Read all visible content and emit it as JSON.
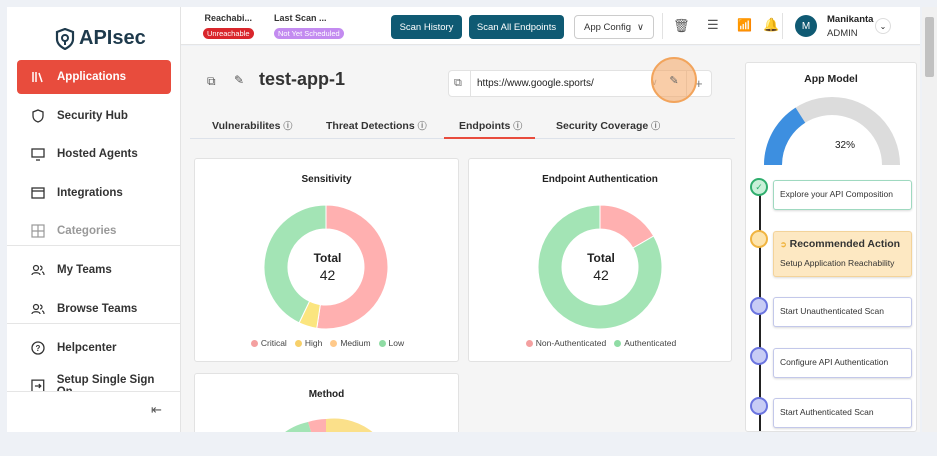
{
  "brand": {
    "name": "APIsec"
  },
  "sidebar": {
    "items": [
      {
        "label": "Applications",
        "icon": "books-icon",
        "active": true
      },
      {
        "label": "Security Hub",
        "icon": "shield-icon"
      },
      {
        "label": "Hosted Agents",
        "icon": "monitor-icon"
      },
      {
        "label": "Integrations",
        "icon": "window-icon"
      },
      {
        "label": "Categories",
        "icon": "grid-icon",
        "disabled": true
      },
      {
        "label": "My Teams",
        "icon": "users-icon"
      },
      {
        "label": "Browse Teams",
        "icon": "users-icon"
      },
      {
        "label": "Helpcenter",
        "icon": "help-icon"
      },
      {
        "label": "Setup Single Sign On",
        "icon": "login-icon"
      }
    ]
  },
  "topbar": {
    "reachability_label": "Reachabi...",
    "reachability_status": "Unreachable",
    "last_scan_label": "Last Scan ...",
    "last_scan_status": "Not Yet Scheduled",
    "scan_history": "Scan History",
    "scan_all": "Scan All Endpoints",
    "app_config": "App Config",
    "user_initial": "M",
    "user_name": "Manikanta",
    "user_role": "ADMIN"
  },
  "app": {
    "title": "test-app-1",
    "url": "https://www.google.sports/"
  },
  "tabs": [
    {
      "label": "Vulnerabilites"
    },
    {
      "label": "Threat Detections"
    },
    {
      "label": "Endpoints",
      "active": true
    },
    {
      "label": "Security Coverage"
    }
  ],
  "colors": {
    "accent": "#e84c3d",
    "primary": "#0f5a73",
    "critical": "#ffb3b3",
    "high": "#ffe27a",
    "low": "#9ee6b0"
  },
  "chart_data": [
    {
      "type": "pie",
      "title": "Sensitivity",
      "center_label": "Total",
      "total": 42,
      "categories": [
        "Critical",
        "High",
        "Medium",
        "Low"
      ],
      "values": [
        22,
        2,
        0,
        18
      ],
      "colors": [
        "#ffb0b0",
        "#fbe57f",
        "#ffd48a",
        "#a3e4b5"
      ]
    },
    {
      "type": "pie",
      "title": "Endpoint Authentication",
      "center_label": "Total",
      "total": 42,
      "categories": [
        "Non-Authenticated",
        "Authenticated"
      ],
      "values": [
        7,
        35
      ],
      "colors": [
        "#ffb0b0",
        "#a3e4b5"
      ]
    },
    {
      "type": "pie",
      "title": "Method"
    }
  ],
  "app_model": {
    "title": "App Model",
    "progress_percent": 32,
    "steps": [
      {
        "label": "Explore your API Composition",
        "status": "done"
      },
      {
        "label": "Recommended Action",
        "sub": "Setup Application Reachability",
        "status": "recommended"
      },
      {
        "label": "Start Unauthenticated Scan",
        "status": "pending"
      },
      {
        "label": "Configure API Authentication",
        "status": "pending"
      },
      {
        "label": "Start Authenticated Scan",
        "status": "pending"
      }
    ]
  }
}
